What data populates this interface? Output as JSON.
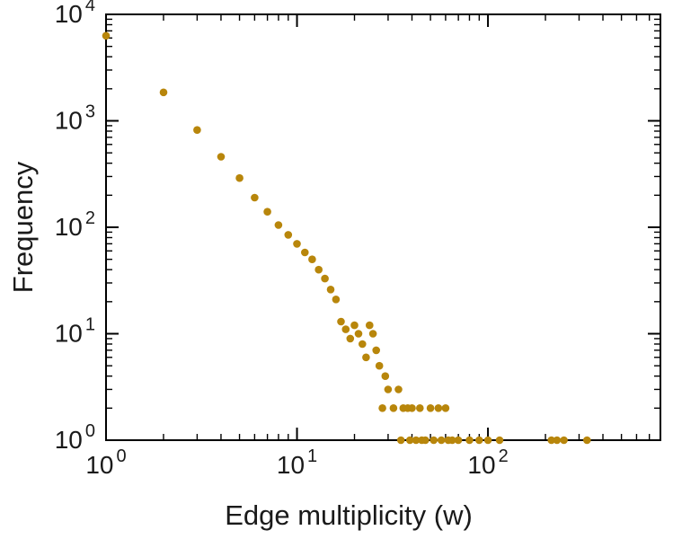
{
  "colors": {
    "background": "#ffffff",
    "axis": "#000000",
    "text": "#1a1a1a"
  },
  "chart_data": {
    "type": "scatter",
    "title": "",
    "xlabel": "Edge multiplicity (w)",
    "ylabel": "Frequency",
    "xscale": "log",
    "yscale": "log",
    "xlim": [
      1,
      800
    ],
    "ylim": [
      1,
      10000
    ],
    "grid": false,
    "legend": null,
    "tick_label_base": "10",
    "x_major_tick_exponents": [
      0,
      1,
      2
    ],
    "y_major_tick_exponents": [
      0,
      1,
      2,
      3,
      4
    ],
    "marker": {
      "shape": "circle",
      "color": "#B8860B",
      "radius": 4.3
    },
    "points": [
      [
        1,
        6300
      ],
      [
        2,
        1850
      ],
      [
        3,
        820
      ],
      [
        4,
        460
      ],
      [
        5,
        290
      ],
      [
        6,
        190
      ],
      [
        7,
        140
      ],
      [
        8,
        105
      ],
      [
        9,
        85
      ],
      [
        10,
        70
      ],
      [
        11,
        58
      ],
      [
        12,
        50
      ],
      [
        13,
        40
      ],
      [
        14,
        33
      ],
      [
        15,
        26
      ],
      [
        16,
        21
      ],
      [
        17,
        13
      ],
      [
        18,
        11
      ],
      [
        19,
        9
      ],
      [
        20,
        12
      ],
      [
        21,
        10
      ],
      [
        22,
        8
      ],
      [
        23,
        6
      ],
      [
        24,
        12
      ],
      [
        25,
        10
      ],
      [
        26,
        7
      ],
      [
        27,
        5
      ],
      [
        28,
        2
      ],
      [
        29,
        4
      ],
      [
        30,
        3
      ],
      [
        32,
        2
      ],
      [
        34,
        3
      ],
      [
        35,
        1
      ],
      [
        36,
        2
      ],
      [
        38,
        2
      ],
      [
        39,
        1
      ],
      [
        40,
        2
      ],
      [
        42,
        1
      ],
      [
        44,
        2
      ],
      [
        45,
        1
      ],
      [
        47,
        1
      ],
      [
        50,
        2
      ],
      [
        52,
        1
      ],
      [
        55,
        2
      ],
      [
        57,
        1
      ],
      [
        60,
        2
      ],
      [
        62,
        1
      ],
      [
        65,
        1
      ],
      [
        70,
        1
      ],
      [
        80,
        1
      ],
      [
        90,
        1
      ],
      [
        100,
        1
      ],
      [
        115,
        1
      ],
      [
        215,
        1
      ],
      [
        230,
        1
      ],
      [
        250,
        1
      ],
      [
        330,
        1
      ]
    ]
  }
}
